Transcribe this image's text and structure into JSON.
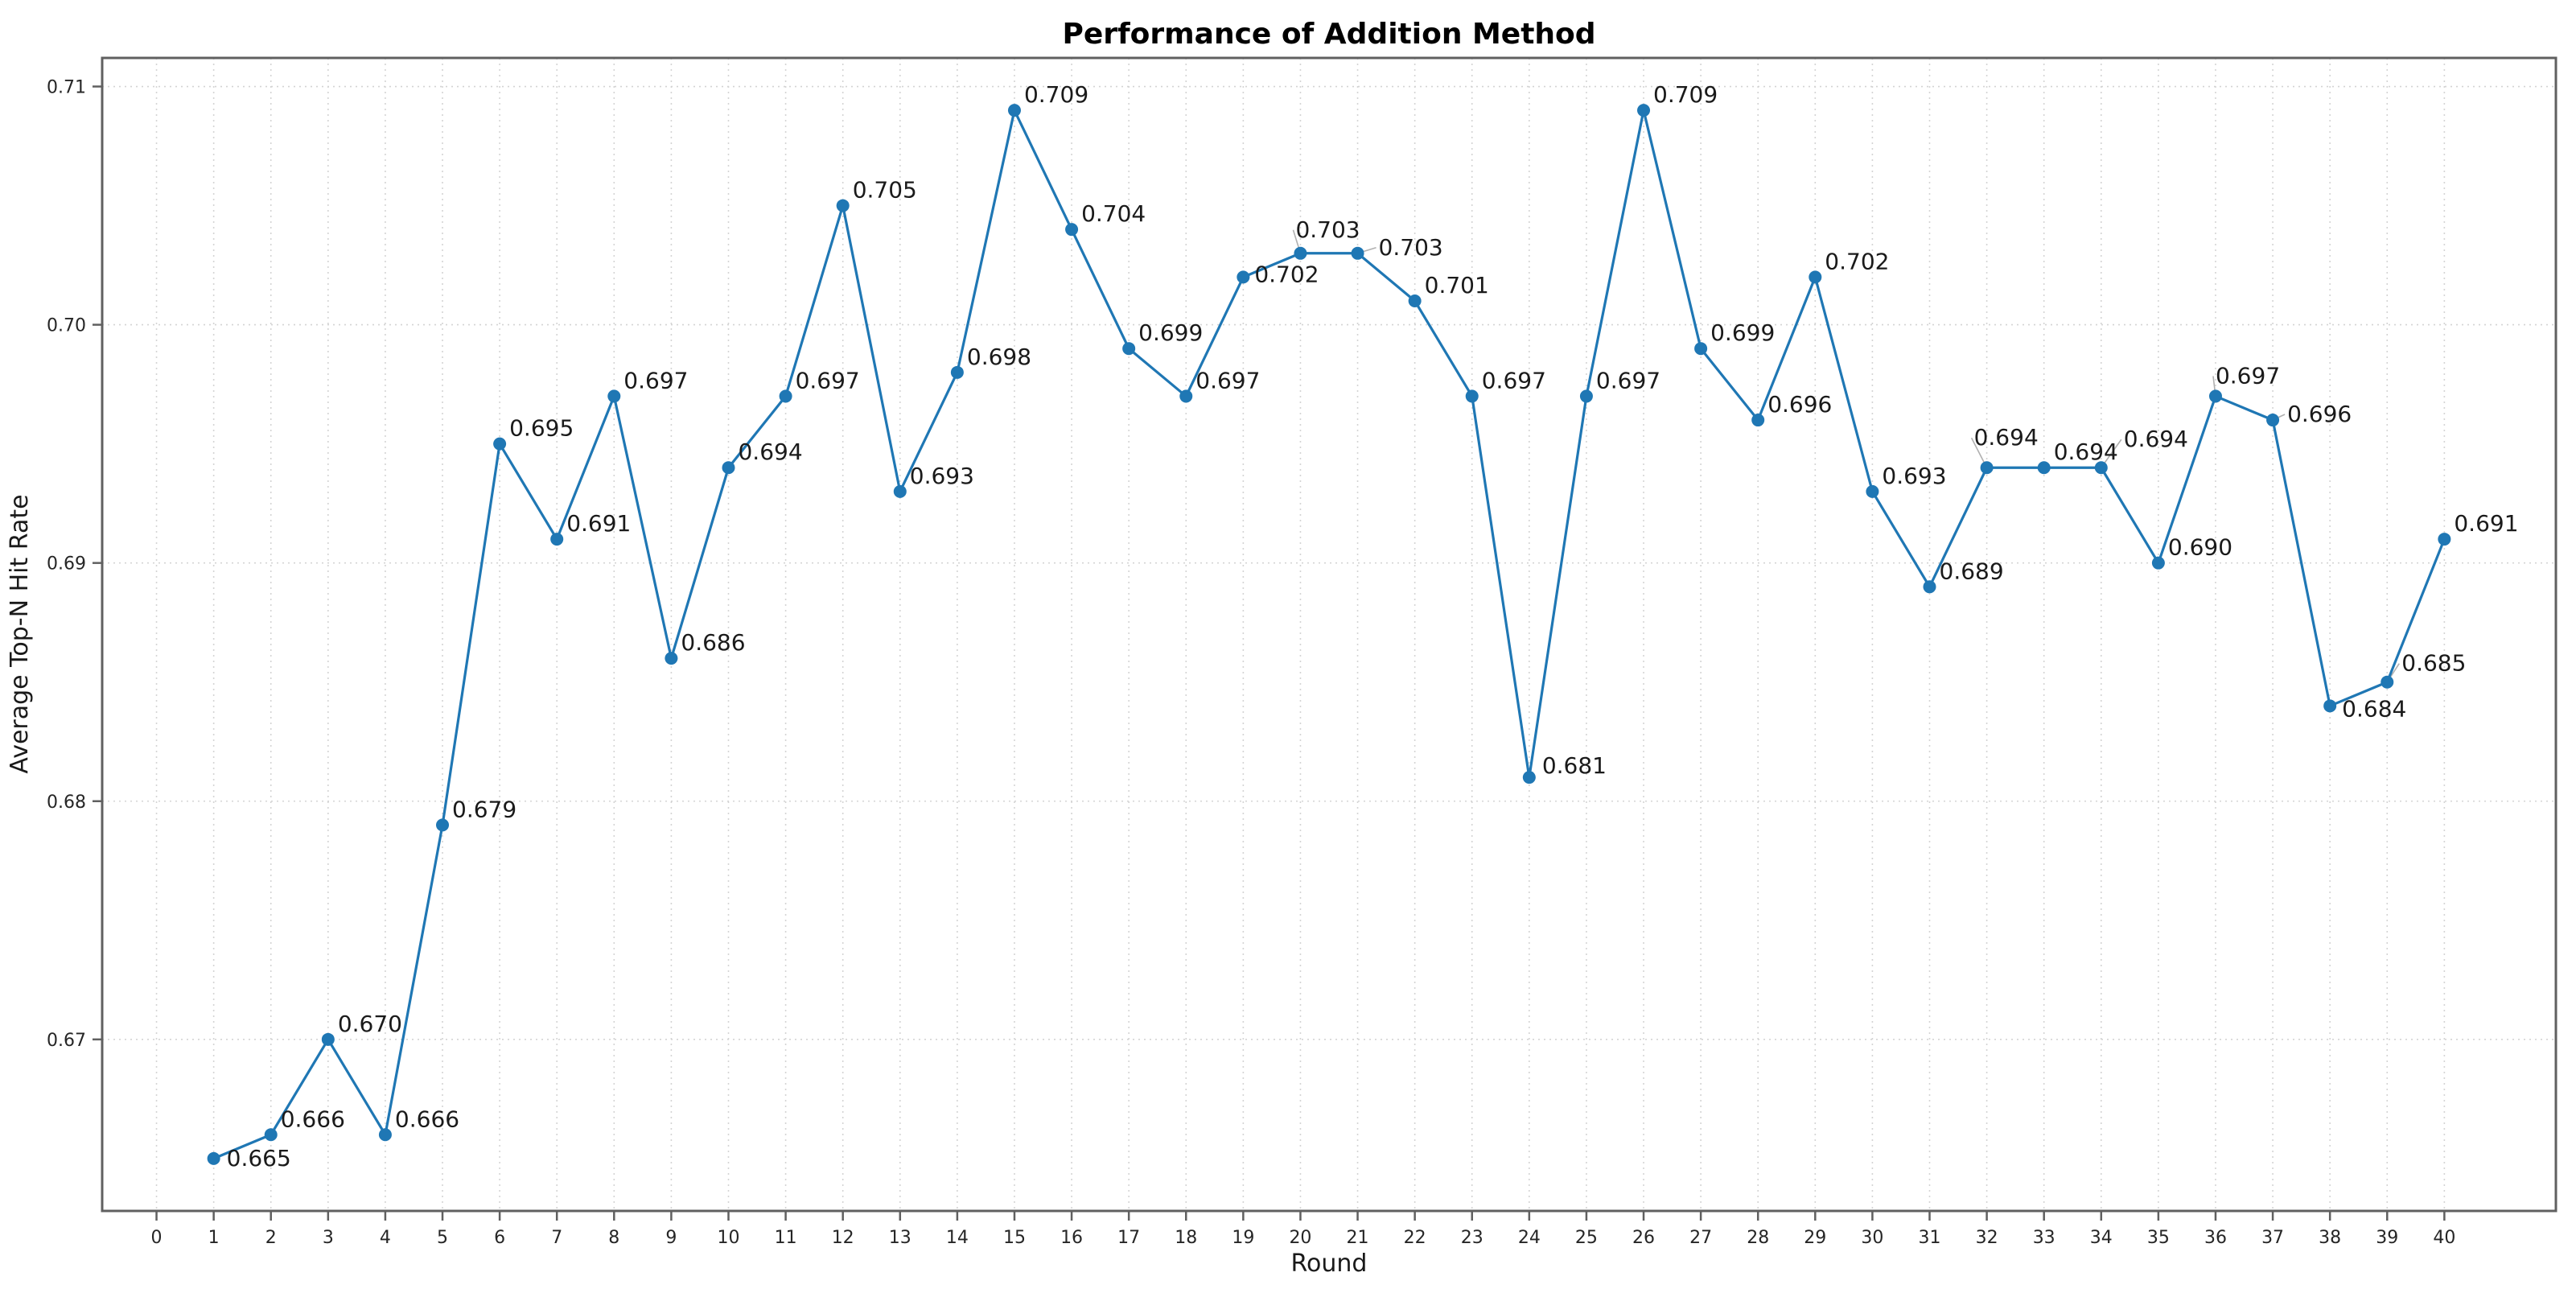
{
  "chart_data": {
    "type": "line",
    "title": "Performance of Addition Method",
    "xlabel": "Round",
    "ylabel": "Average Top-N Hit Rate",
    "x": [
      1,
      2,
      3,
      4,
      5,
      6,
      7,
      8,
      9,
      10,
      11,
      12,
      13,
      14,
      15,
      16,
      17,
      18,
      19,
      20,
      21,
      22,
      23,
      24,
      25,
      26,
      27,
      28,
      29,
      30,
      31,
      32,
      33,
      34,
      35,
      36,
      37,
      38,
      39,
      40
    ],
    "values": [
      0.665,
      0.666,
      0.67,
      0.666,
      0.679,
      0.695,
      0.691,
      0.697,
      0.686,
      0.694,
      0.697,
      0.705,
      0.693,
      0.698,
      0.709,
      0.704,
      0.699,
      0.697,
      0.702,
      0.703,
      0.703,
      0.701,
      0.697,
      0.681,
      0.697,
      0.709,
      0.699,
      0.696,
      0.702,
      0.693,
      0.689,
      0.694,
      0.694,
      0.694,
      0.69,
      0.697,
      0.696,
      0.684,
      0.685,
      0.691
    ],
    "point_labels": [
      "0.665",
      "0.666",
      "0.670",
      "0.666",
      "0.679",
      "0.695",
      "0.691",
      "0.697",
      "0.686",
      "0.694",
      "0.697",
      "0.705",
      "0.693",
      "0.698",
      "0.709",
      "0.704",
      "0.699",
      "0.697",
      "0.702",
      "0.703",
      "0.703",
      "0.701",
      "0.697",
      "0.681",
      "0.697",
      "0.709",
      "0.699",
      "0.696",
      "0.702",
      "0.693",
      "0.689",
      "0.694",
      "0.694",
      "0.694",
      "0.690",
      "0.697",
      "0.696",
      "0.684",
      "0.685",
      "0.691"
    ],
    "xticks": [
      0,
      1,
      2,
      3,
      4,
      5,
      6,
      7,
      8,
      9,
      10,
      11,
      12,
      13,
      14,
      15,
      16,
      17,
      18,
      19,
      20,
      21,
      22,
      23,
      24,
      25,
      26,
      27,
      28,
      29,
      30,
      31,
      32,
      33,
      34,
      35,
      36,
      37,
      38,
      39,
      40
    ],
    "yticks": [
      0.67,
      0.68,
      0.69,
      0.7,
      0.71
    ],
    "ytick_labels": [
      "0.67",
      "0.68",
      "0.69",
      "0.70",
      "0.71"
    ],
    "xlim": [
      -0.95,
      41.95
    ],
    "ylim": [
      0.6628,
      0.7112
    ],
    "grid": true,
    "grid_style": "dotted",
    "legend": "none",
    "marker": "circle",
    "colors": {
      "line": "#1f77b4",
      "marker": "#1f77b4",
      "grid": "#d4d4d4",
      "spine": "#606060",
      "tick": "#606060",
      "tick_text": "#262626",
      "point_label_text": "#1a1a1a",
      "leader": "#b0b0b0",
      "background": "#ffffff"
    },
    "label_layout": {
      "default_offset": [
        12,
        -10
      ],
      "offsets": {
        "1": [
          16,
          9
        ],
        "19": [
          14,
          6
        ],
        "20": [
          -6,
          -20
        ],
        "21": [
          26,
          2
        ],
        "24": [
          16,
          -5
        ],
        "32": [
          -16,
          -28
        ],
        "34": [
          28,
          -26
        ],
        "36": [
          0,
          -16
        ],
        "37": [
          18,
          2
        ],
        "38": [
          15,
          13
        ],
        "39": [
          18,
          -14
        ]
      },
      "leaders": [
        20,
        21,
        32,
        34,
        36,
        37,
        39
      ]
    }
  }
}
